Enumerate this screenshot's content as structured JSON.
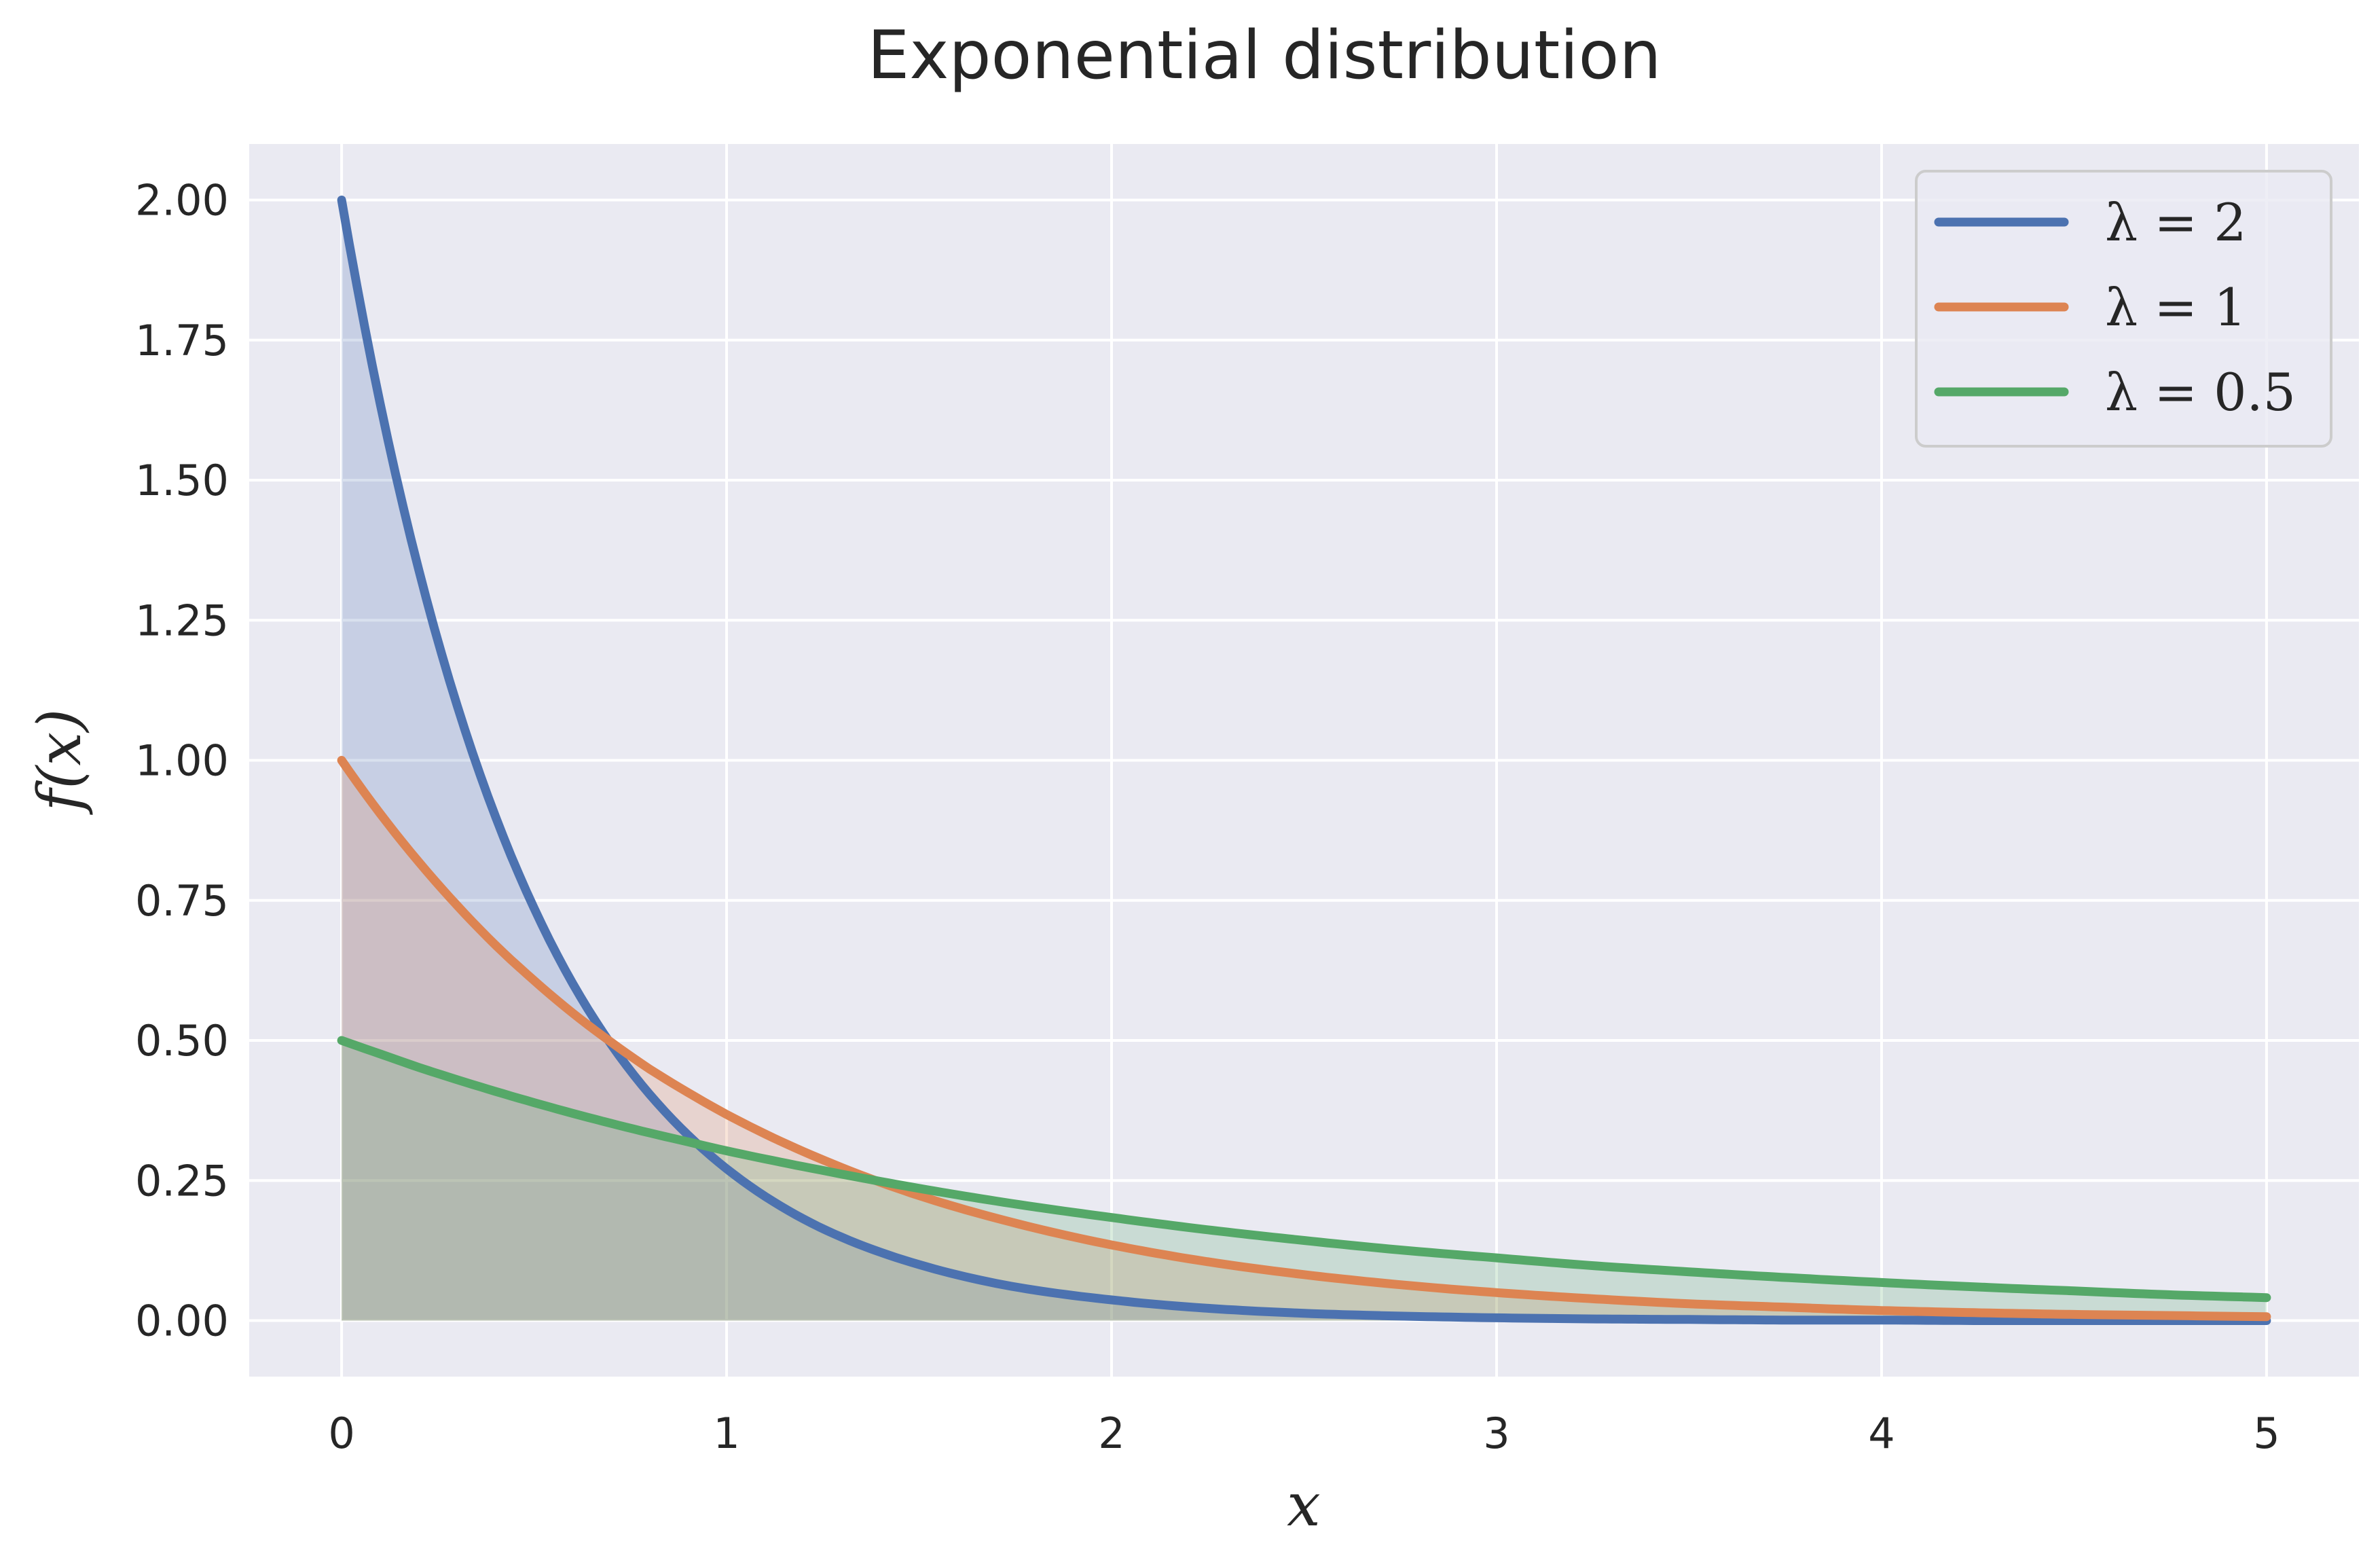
{
  "chart_data": {
    "type": "line",
    "title": "Exponential distribution",
    "xlabel": "x",
    "ylabel": "f(x)",
    "xlim": [
      -0.24,
      5.24
    ],
    "ylim": [
      -0.1,
      2.1
    ],
    "xticks": [
      0,
      1,
      2,
      3,
      4,
      5
    ],
    "xtick_labels": [
      "0",
      "1",
      "2",
      "3",
      "4",
      "5"
    ],
    "yticks": [
      0,
      0.25,
      0.5,
      0.75,
      1.0,
      1.25,
      1.5,
      1.75,
      2.0
    ],
    "ytick_labels": [
      "0.00",
      "0.25",
      "0.50",
      "0.75",
      "1.00",
      "1.25",
      "1.50",
      "1.75",
      "2.00"
    ],
    "grid": true,
    "legend_position": "top-right",
    "filled_under_curves": true,
    "x": [
      0,
      0.1,
      0.2,
      0.3,
      0.4,
      0.5,
      0.6,
      0.7,
      0.8,
      0.9,
      1.0,
      1.25,
      1.5,
      1.75,
      2.0,
      2.25,
      2.5,
      2.75,
      3.0,
      3.25,
      3.5,
      3.75,
      4.0,
      4.25,
      4.5,
      4.75,
      5.0
    ],
    "series": [
      {
        "name": "λ = 2",
        "color": "#4c72b0",
        "values": [
          2.0,
          1.637,
          1.341,
          1.098,
          0.899,
          0.736,
          0.602,
          0.493,
          0.404,
          0.331,
          0.271,
          0.164,
          0.1,
          0.06,
          0.037,
          0.022,
          0.013,
          0.008,
          0.005,
          0.003,
          0.002,
          0.001,
          0.001,
          0.0,
          0.0,
          0.0,
          0.0
        ]
      },
      {
        "name": "λ = 1",
        "color": "#dd8452",
        "values": [
          1.0,
          0.905,
          0.819,
          0.741,
          0.67,
          0.607,
          0.549,
          0.497,
          0.449,
          0.407,
          0.368,
          0.287,
          0.223,
          0.174,
          0.135,
          0.105,
          0.082,
          0.064,
          0.05,
          0.039,
          0.03,
          0.024,
          0.018,
          0.014,
          0.011,
          0.009,
          0.007
        ]
      },
      {
        "name": "λ = 0.5",
        "color": "#55a868",
        "values": [
          0.5,
          0.476,
          0.452,
          0.43,
          0.409,
          0.389,
          0.37,
          0.352,
          0.335,
          0.319,
          0.303,
          0.268,
          0.236,
          0.208,
          0.184,
          0.162,
          0.143,
          0.126,
          0.112,
          0.098,
          0.087,
          0.077,
          0.068,
          0.06,
          0.053,
          0.046,
          0.041
        ]
      }
    ]
  },
  "style": {
    "plot_background": "#eaeaf2",
    "grid_color": "#ffffff",
    "text_color": "#262626"
  }
}
